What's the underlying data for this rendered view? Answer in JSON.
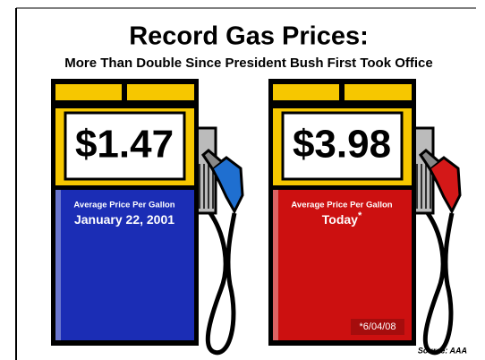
{
  "header": {
    "title": "Record Gas Prices:",
    "subtitle": "More Than Double Since President Bush First Took Office"
  },
  "pumps": [
    {
      "price": "$1.47",
      "caption": "Average Price Per Gallon",
      "date": "January 22, 2001",
      "color": "#1b2db5",
      "handle": "#1f6fd0"
    },
    {
      "price": "$3.98",
      "caption": "Average Price Per Gallon",
      "date": "Today",
      "marker": "*",
      "footnote": "*6/04/08",
      "color": "#cc1010",
      "handle": "#d41818"
    }
  ],
  "source": "Source: AAA"
}
